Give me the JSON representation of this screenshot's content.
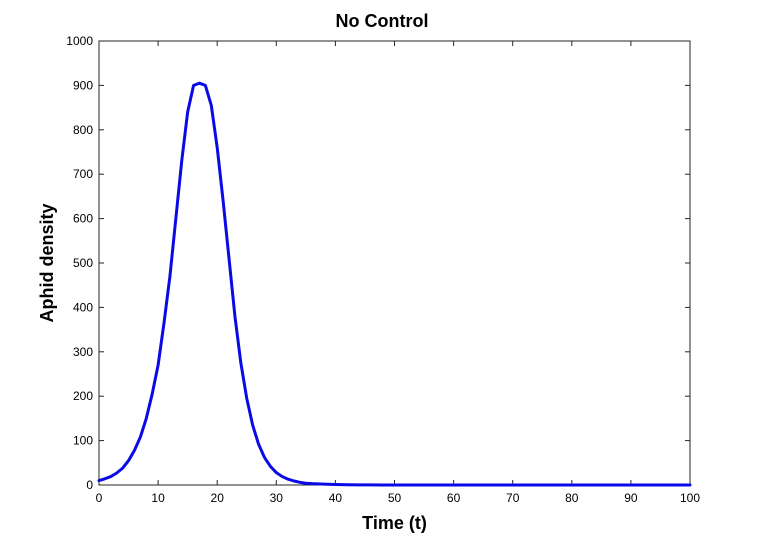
{
  "chart_data": {
    "type": "line",
    "title": "No Control",
    "xlabel": "Time (t)",
    "ylabel": "Aphid density",
    "xlim": [
      0,
      100
    ],
    "ylim": [
      0,
      1000
    ],
    "xticks": [
      0,
      10,
      20,
      30,
      40,
      50,
      60,
      70,
      80,
      90,
      100
    ],
    "yticks": [
      0,
      100,
      200,
      300,
      400,
      500,
      600,
      700,
      800,
      900,
      1000
    ],
    "grid": false,
    "line_color": "#0a0ae6",
    "series": [
      {
        "x": [
          0,
          1,
          2,
          3,
          4,
          5,
          6,
          7,
          8,
          9,
          10,
          11,
          12,
          13,
          14,
          15,
          16,
          17,
          18,
          19,
          20,
          21,
          22,
          23,
          24,
          25,
          26,
          27,
          28,
          29,
          30,
          31,
          32,
          33,
          34,
          35,
          36,
          38,
          40,
          42,
          44,
          46,
          48,
          50,
          55,
          60,
          70,
          80,
          90,
          100
        ],
        "values": [
          10,
          14,
          19,
          27,
          38,
          55,
          78,
          108,
          150,
          205,
          270,
          365,
          470,
          600,
          730,
          840,
          900,
          905,
          900,
          855,
          760,
          640,
          510,
          380,
          275,
          195,
          135,
          92,
          62,
          42,
          28,
          19,
          13,
          9,
          6,
          4,
          3,
          2,
          1,
          0.5,
          0.3,
          0.2,
          0.1,
          0.05,
          0,
          0,
          0,
          0,
          0,
          0
        ]
      }
    ]
  }
}
